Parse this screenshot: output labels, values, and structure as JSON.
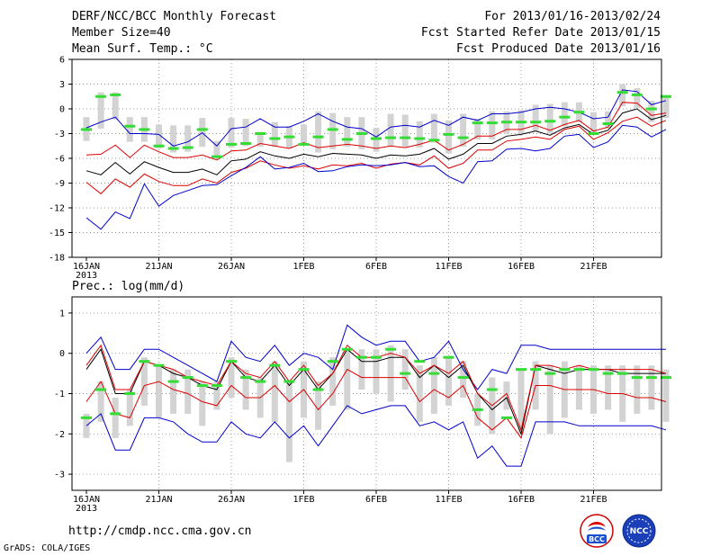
{
  "header": {
    "title": "DERF/NCC/BCC Monthly Forecast",
    "member_size": "Member Size=40",
    "variable": "Mean Surf. Temp.: °C",
    "forecast_period": "For 2013/01/16-2013/02/24",
    "fcst_started": "Fcst Started Refer Date 2013/01/15",
    "fcst_produced": "Fcst Produced Date 2013/01/16"
  },
  "footer": {
    "url": "http://cmdp.ncc.cma.gov.cn",
    "grads": "GrADS: COLA/IGES",
    "bcc_logo_text": "BCC",
    "ncc_logo_text": "NCC"
  },
  "colors": {
    "ensemble_mean": "#000000",
    "spread": "#dd0000",
    "extreme": "#0000cc",
    "box": "#d3d3d3",
    "median": "#33dd33",
    "grid": "#777777"
  },
  "chart_data": [
    {
      "type": "line",
      "title": "Mean Surf. Temp.: °C",
      "ylim": [
        -18,
        6
      ],
      "yticks": [
        "6",
        "3",
        "0",
        "-3",
        "-6",
        "-9",
        "-12",
        "-15",
        "-18"
      ],
      "ytick_values": [
        6,
        3,
        0,
        -3,
        -6,
        -9,
        -12,
        -15,
        -18
      ],
      "xtick_labels": [
        "16JAN",
        "21JAN",
        "26JAN",
        "1FEB",
        "6FEB",
        "11FEB",
        "16FEB",
        "21FEB"
      ],
      "x_year_label": "2013",
      "series": [
        {
          "name": "blue_upper",
          "values": [
            -2.3,
            -1.6,
            -1.0,
            -3.0,
            -3.0,
            -3.1,
            -4.5,
            -4.0,
            -2.9,
            -4.5,
            -2.4,
            -2.2,
            -1.2,
            -2.2,
            -2.2,
            -1.5,
            -0.6,
            -1.5,
            -2.2,
            -2.4,
            -3.4,
            -2.2,
            -2.0,
            -2.2,
            -1.4,
            -2.0,
            -1.0,
            -1.4,
            -0.6,
            -0.6,
            -0.4,
            0.0,
            0.2,
            0.0,
            -0.4,
            -1.2,
            -1.0,
            2.3,
            2.1,
            0.5,
            1.0
          ]
        },
        {
          "name": "red_upper",
          "values": [
            -5.6,
            -5.5,
            -4.4,
            -5.9,
            -4.4,
            -5.2,
            -5.9,
            -5.9,
            -5.6,
            -6.2,
            -5.1,
            -5.0,
            -4.2,
            -4.5,
            -4.8,
            -4.1,
            -4.7,
            -4.5,
            -4.3,
            -4.5,
            -4.8,
            -4.5,
            -4.7,
            -4.3,
            -3.8,
            -5.0,
            -4.3,
            -3.3,
            -3.3,
            -2.5,
            -2.5,
            -2.0,
            -2.6,
            -1.9,
            -1.4,
            -2.7,
            -2.2,
            0.8,
            0.7,
            -0.8,
            -0.5
          ]
        },
        {
          "name": "mean",
          "values": [
            -7.5,
            -8.0,
            -6.5,
            -7.9,
            -6.4,
            -7.1,
            -7.7,
            -7.7,
            -7.3,
            -8.0,
            -6.3,
            -6.1,
            -5.2,
            -5.7,
            -6.0,
            -5.5,
            -5.8,
            -5.4,
            -5.5,
            -5.6,
            -6.0,
            -5.6,
            -5.7,
            -5.5,
            -4.8,
            -6.1,
            -5.5,
            -4.2,
            -4.2,
            -3.3,
            -3.1,
            -2.7,
            -3.2,
            -2.3,
            -1.9,
            -3.1,
            -2.6,
            -0.5,
            0.0,
            -1.3,
            -0.8
          ]
        },
        {
          "name": "red_lower",
          "values": [
            -8.9,
            -10.3,
            -8.5,
            -9.5,
            -7.9,
            -8.8,
            -9.3,
            -9.3,
            -8.5,
            -9.0,
            -7.7,
            -7.2,
            -6.3,
            -6.8,
            -7.2,
            -6.9,
            -7.3,
            -6.8,
            -6.9,
            -6.6,
            -7.2,
            -6.7,
            -6.5,
            -6.8,
            -5.7,
            -7.2,
            -6.6,
            -5.0,
            -5.0,
            -3.9,
            -3.7,
            -3.4,
            -3.7,
            -2.5,
            -2.1,
            -3.7,
            -2.9,
            -1.5,
            -1.0,
            -2.1,
            -1.4
          ]
        },
        {
          "name": "blue_lower",
          "values": [
            -13.2,
            -14.6,
            -12.5,
            -13.3,
            -9.1,
            -11.8,
            -10.5,
            -9.9,
            -9.3,
            -9.2,
            -8.1,
            -7.1,
            -5.8,
            -7.3,
            -7.1,
            -6.6,
            -7.6,
            -7.5,
            -7.0,
            -6.8,
            -6.9,
            -6.8,
            -6.5,
            -7.0,
            -6.9,
            -8.2,
            -9.0,
            -6.4,
            -6.3,
            -4.9,
            -4.8,
            -5.1,
            -4.8,
            -3.3,
            -3.1,
            -4.7,
            -4.0,
            -2.0,
            -2.2,
            -3.4,
            -2.5
          ]
        }
      ],
      "box_bottom": [
        -3.9,
        -2.4,
        -1.3,
        -4.0,
        -4.0,
        -4.8,
        -5.3,
        -5.2,
        -4.6,
        -5.7,
        -4.7,
        -4.5,
        -4.6,
        -4.6,
        -4.8,
        -4.3,
        -5.3,
        -4.9,
        -4.6,
        -4.9,
        -5.2,
        -4.6,
        -4.6,
        -4.7,
        -4.1,
        -5.4,
        -4.6,
        -3.7,
        -3.7,
        -3.0,
        -3.0,
        -2.7,
        -3.0,
        -2.1,
        -1.6,
        -3.0,
        -2.4,
        0.3,
        0.1,
        -1.6,
        -1.1
      ],
      "box_top": [
        -1.0,
        2.0,
        2.0,
        -1.0,
        -1.0,
        -1.9,
        -2.0,
        -2.0,
        -1.1,
        -3.9,
        -1.1,
        -1.2,
        -2.8,
        -1.6,
        -2.1,
        -1.9,
        -0.3,
        -0.5,
        -1.0,
        -1.0,
        -2.3,
        -0.6,
        -0.7,
        -1.5,
        -0.6,
        -1.4,
        -0.6,
        -1.2,
        -0.3,
        -0.3,
        -0.2,
        0.5,
        0.6,
        0.8,
        0.8,
        -0.4,
        -0.3,
        3.0,
        2.5,
        1.0,
        1.5
      ],
      "median": [
        -2.5,
        1.5,
        1.7,
        -2.1,
        -2.5,
        -4.5,
        -4.8,
        -4.7,
        -2.5,
        -5.8,
        -4.3,
        -4.2,
        -3.0,
        -3.6,
        -3.4,
        -4.3,
        -3.4,
        -2.5,
        -3.7,
        -3.0,
        -3.6,
        -3.5,
        -3.5,
        -3.6,
        -3.8,
        -3.1,
        -3.5,
        -1.7,
        -1.7,
        -1.6,
        -1.6,
        -1.6,
        -1.5,
        -1.0,
        -0.4,
        -3.0,
        -1.8,
        2.0,
        1.7,
        0.0,
        1.5
      ]
    },
    {
      "type": "line",
      "title": "Prec.: log(mm/d)",
      "ylim": [
        -3.4,
        1.4
      ],
      "yticks": [
        "1",
        "0",
        "-1",
        "-2",
        "-3"
      ],
      "ytick_values": [
        1,
        0,
        -1,
        -2,
        -3
      ],
      "xtick_labels": [
        "16JAN",
        "21JAN",
        "26JAN",
        "1FEB",
        "6FEB",
        "11FEB",
        "16FEB",
        "21FEB"
      ],
      "x_year_label": "2013",
      "series": [
        {
          "name": "blue_upper",
          "values": [
            0.0,
            0.4,
            -0.4,
            -0.4,
            0.1,
            0.1,
            -0.1,
            -0.3,
            -0.5,
            -0.7,
            0.3,
            -0.1,
            -0.2,
            0.2,
            -0.3,
            0.0,
            -0.1,
            -0.4,
            0.7,
            0.4,
            0.2,
            0.3,
            0.3,
            -0.2,
            -0.1,
            0.3,
            -0.4,
            -0.9,
            -0.4,
            -0.5,
            0.2,
            0.2,
            0.1,
            0.1,
            0.1,
            0.1,
            0.1,
            0.1,
            0.1,
            0.1,
            0.1
          ]
        },
        {
          "name": "mean",
          "values": [
            -0.4,
            0.1,
            -1.0,
            -1.0,
            -0.2,
            -0.3,
            -0.5,
            -0.6,
            -0.8,
            -0.9,
            -0.2,
            -0.6,
            -0.7,
            -0.3,
            -0.8,
            -0.4,
            -0.9,
            -0.5,
            0.1,
            -0.2,
            -0.2,
            -0.1,
            -0.1,
            -0.6,
            -0.3,
            -0.6,
            -0.3,
            -1.0,
            -1.4,
            -1.1,
            -2.0,
            -0.3,
            -0.4,
            -0.5,
            -0.4,
            -0.4,
            -0.4,
            -0.5,
            -0.5,
            -0.5,
            -0.5
          ]
        },
        {
          "name": "red_upper",
          "values": [
            -0.3,
            0.2,
            -0.9,
            -0.9,
            -0.2,
            -0.3,
            -0.4,
            -0.6,
            -0.7,
            -0.8,
            -0.2,
            -0.5,
            -0.6,
            -0.2,
            -0.7,
            -0.3,
            -0.8,
            -0.5,
            0.2,
            -0.1,
            -0.1,
            0.0,
            -0.1,
            -0.5,
            -0.3,
            -0.5,
            -0.2,
            -1.0,
            -1.3,
            -1.0,
            -1.9,
            -0.3,
            -0.3,
            -0.4,
            -0.3,
            -0.4,
            -0.4,
            -0.4,
            -0.4,
            -0.4,
            -0.5
          ]
        },
        {
          "name": "red_lower",
          "values": [
            -1.2,
            -0.7,
            -1.5,
            -1.6,
            -0.8,
            -0.7,
            -0.9,
            -1.0,
            -1.2,
            -1.3,
            -0.8,
            -1.1,
            -1.1,
            -0.8,
            -1.2,
            -0.9,
            -1.4,
            -1.0,
            -0.4,
            -0.6,
            -0.6,
            -0.6,
            -0.6,
            -1.2,
            -0.9,
            -1.1,
            -0.8,
            -1.6,
            -1.9,
            -1.6,
            -2.1,
            -0.8,
            -0.8,
            -0.9,
            -0.9,
            -0.9,
            -1.0,
            -1.0,
            -1.1,
            -1.1,
            -1.2
          ]
        },
        {
          "name": "blue_lower",
          "values": [
            -1.8,
            -1.5,
            -2.4,
            -2.4,
            -1.6,
            -1.6,
            -1.7,
            -2.0,
            -2.2,
            -2.2,
            -1.7,
            -2.0,
            -2.1,
            -1.7,
            -2.1,
            -1.8,
            -2.3,
            -1.8,
            -1.3,
            -1.5,
            -1.4,
            -1.3,
            -1.3,
            -1.8,
            -1.7,
            -1.9,
            -1.7,
            -2.6,
            -2.3,
            -2.8,
            -2.8,
            -1.7,
            -1.7,
            -1.7,
            -1.8,
            -1.8,
            -1.8,
            -1.8,
            -1.8,
            -1.8,
            -1.9
          ]
        }
      ],
      "box_bottom": [
        -2.1,
        -1.7,
        -2.1,
        -1.8,
        -1.3,
        -1.6,
        -1.5,
        -1.5,
        -1.8,
        -1.4,
        -1.1,
        -1.4,
        -1.6,
        -1.7,
        -2.7,
        -1.6,
        -1.9,
        -1.3,
        -1.4,
        -0.9,
        -1.0,
        -1.2,
        -0.9,
        -1.7,
        -1.5,
        -1.3,
        -1.1,
        -1.8,
        -2.0,
        -1.4,
        -2.0,
        -1.4,
        -2.0,
        -1.6,
        -1.4,
        -1.5,
        -1.4,
        -1.7,
        -1.5,
        -1.4,
        -1.7
      ],
      "box_top": [
        -1.5,
        -0.7,
        -1.1,
        -0.9,
        -0.1,
        -0.3,
        -0.4,
        -0.4,
        -0.7,
        -0.7,
        -0.1,
        -0.4,
        -0.6,
        -0.2,
        -0.7,
        -0.2,
        -0.7,
        -0.1,
        0.1,
        0.1,
        0.1,
        0.2,
        0.1,
        -0.3,
        -0.1,
        -0.1,
        -0.2,
        -1.0,
        -0.6,
        -0.7,
        -0.4,
        -0.2,
        -0.3,
        -0.2,
        -0.3,
        -0.3,
        -0.3,
        -0.3,
        -0.3,
        -0.3,
        -0.4
      ],
      "median": [
        -1.6,
        -0.9,
        -1.5,
        -1.0,
        -0.2,
        -0.3,
        -0.7,
        -0.6,
        -0.8,
        -0.8,
        -0.2,
        -0.6,
        -0.7,
        -0.3,
        -0.7,
        -0.4,
        -0.9,
        -0.2,
        0.1,
        -0.1,
        -0.1,
        0.1,
        -0.5,
        -0.2,
        -0.5,
        -0.1,
        -0.6,
        -1.4,
        -0.9,
        -1.6,
        -0.4,
        -0.4,
        -0.5,
        -0.4,
        -0.4,
        -0.4,
        -0.5,
        -0.5,
        -0.6,
        -0.6,
        -0.6
      ]
    }
  ]
}
